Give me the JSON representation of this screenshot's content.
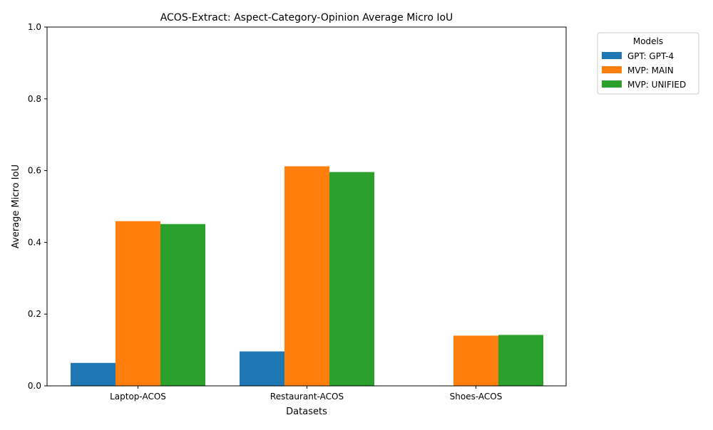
{
  "chart_data": {
    "type": "bar",
    "title": "ACOS-Extract: Aspect-Category-Opinion Average Micro IoU",
    "xlabel": "Datasets",
    "ylabel": "Average Micro IoU",
    "categories": [
      "Laptop-ACOS",
      "Restaurant-ACOS",
      "Shoes-ACOS"
    ],
    "series": [
      {
        "name": "GPT: GPT-4",
        "color": "#1f77b4",
        "values": [
          0.064,
          0.096,
          0.0
        ]
      },
      {
        "name": "MVP: MAIN",
        "color": "#ff7f0e",
        "values": [
          0.459,
          0.612,
          0.14
        ]
      },
      {
        "name": "MVP: UNIFIED",
        "color": "#2ca02c",
        "values": [
          0.451,
          0.596,
          0.142
        ]
      }
    ],
    "ylim": [
      0,
      1.0
    ],
    "yticks": [
      "0.0",
      "0.2",
      "0.4",
      "0.6",
      "0.8",
      "1.0"
    ],
    "grid": false,
    "legend": {
      "title": "Models",
      "placement": "outside-top-right"
    }
  }
}
